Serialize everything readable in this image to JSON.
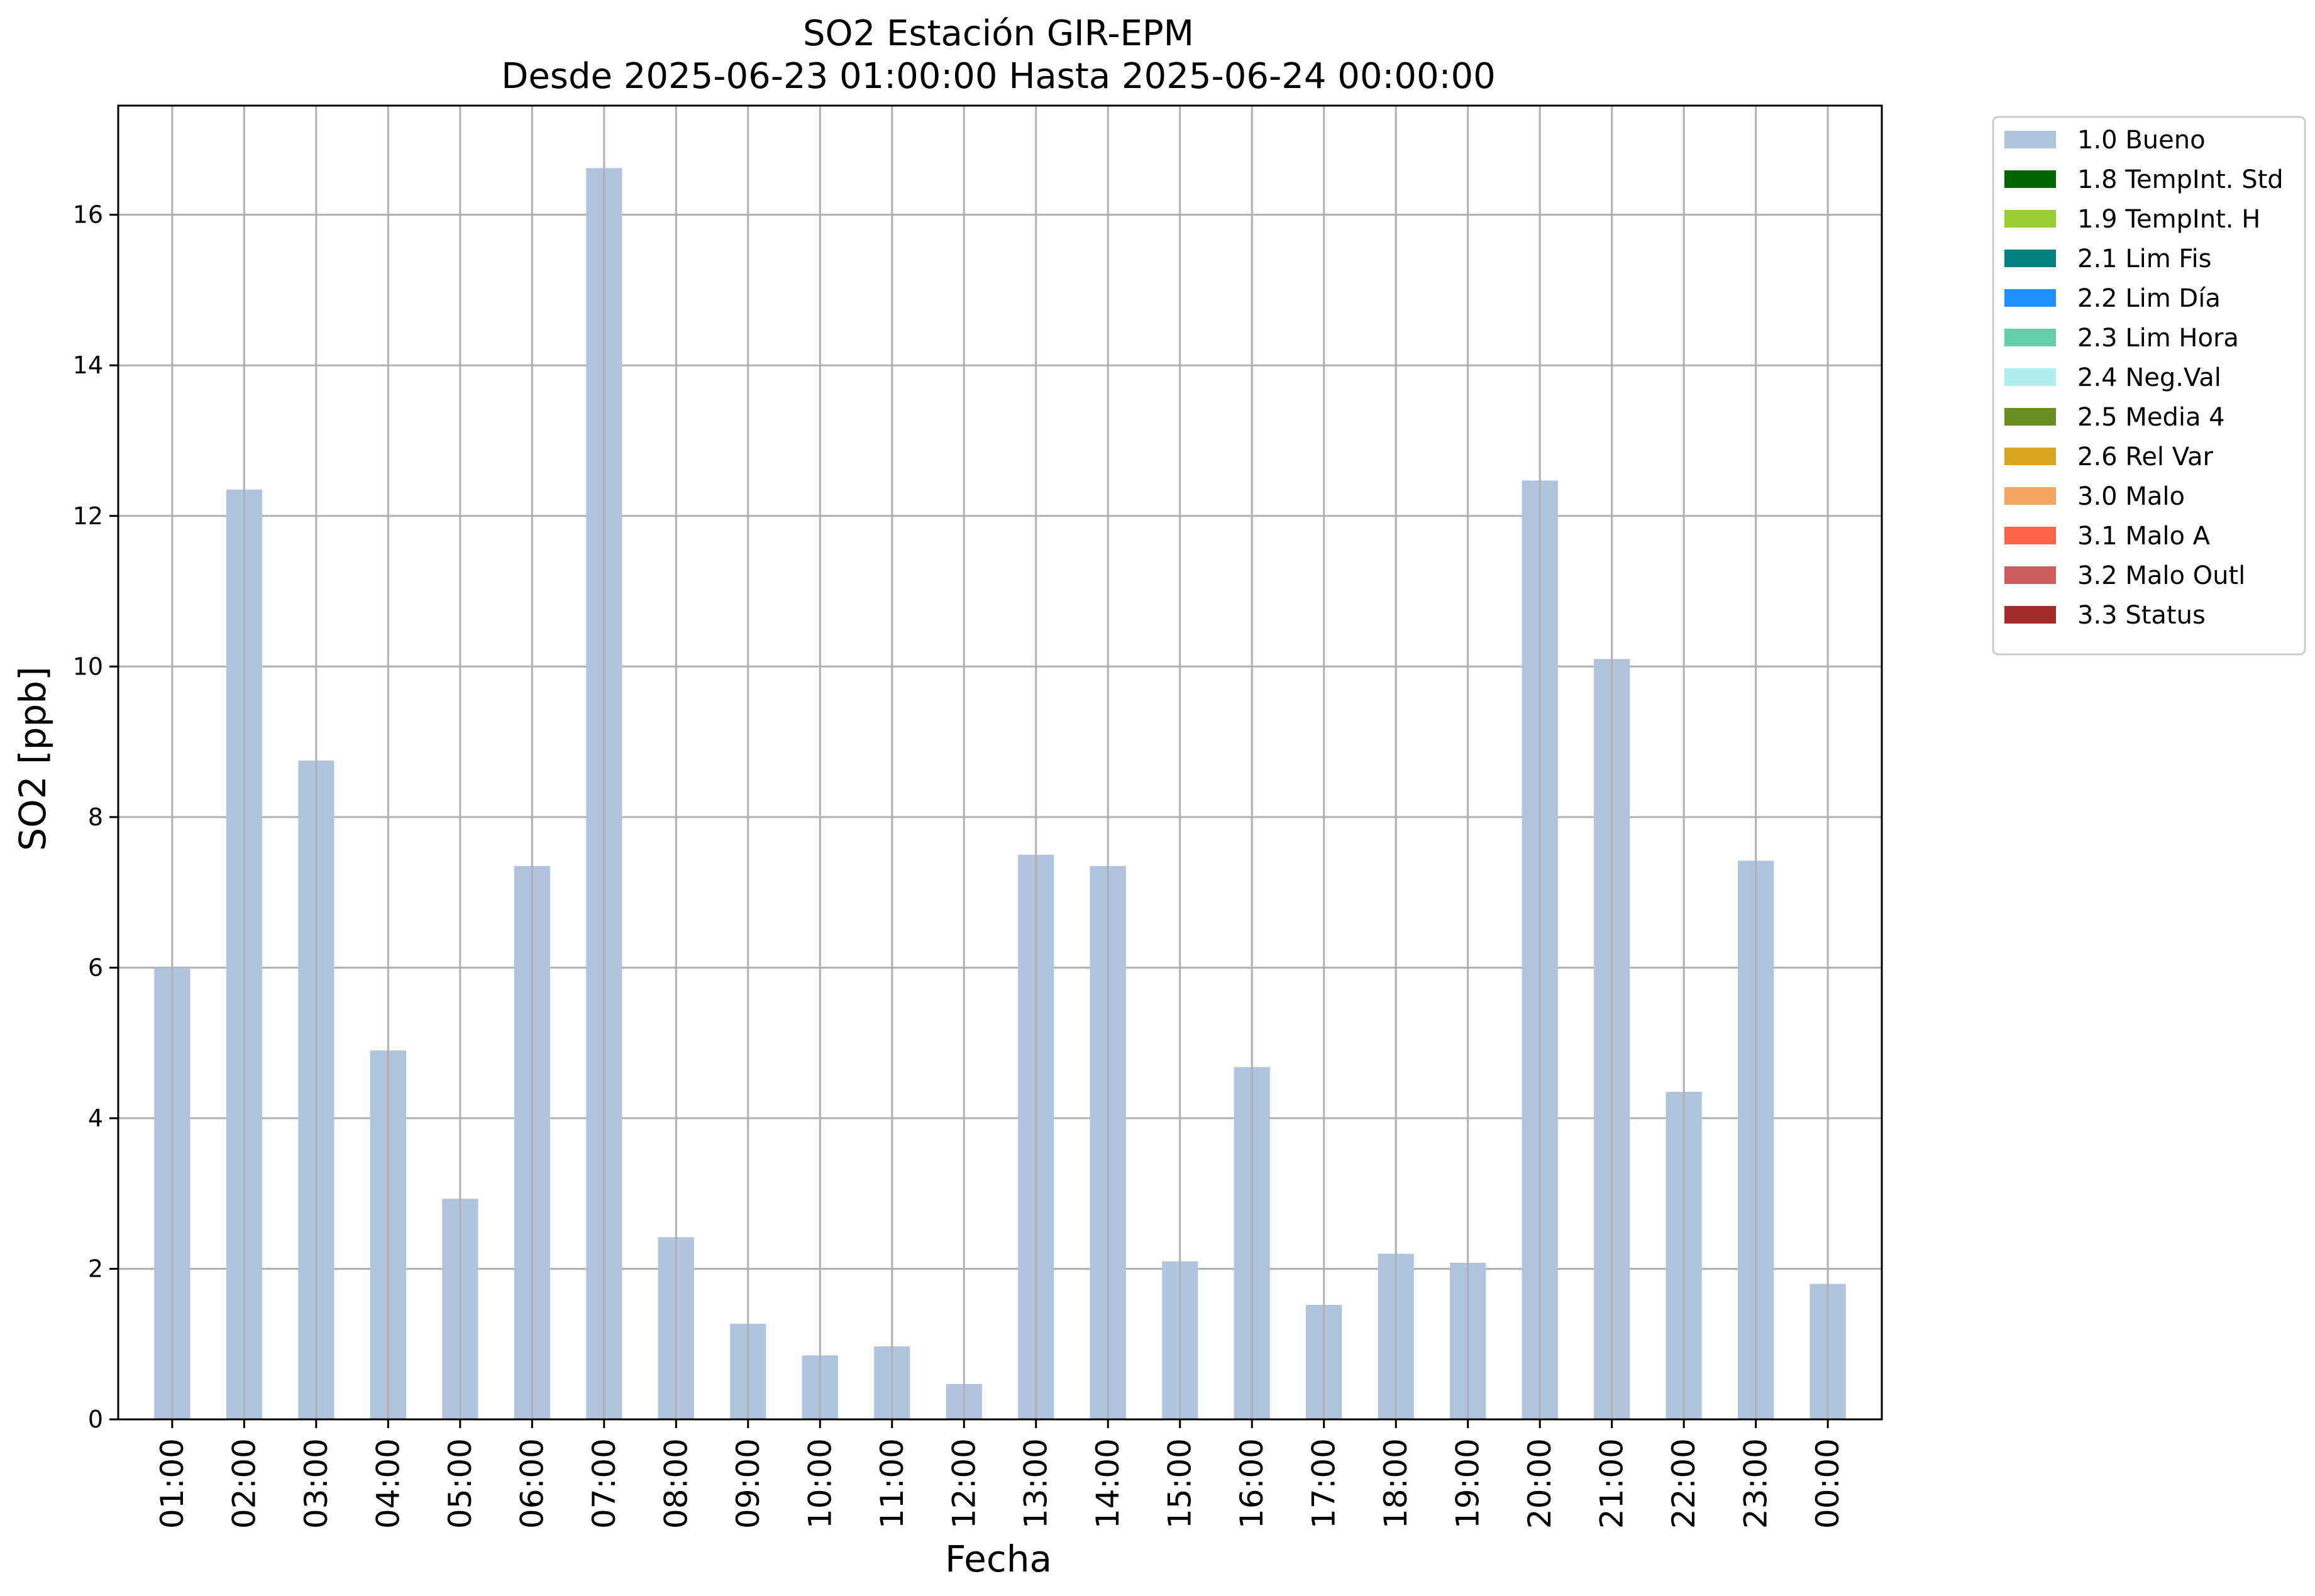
{
  "chart_data": {
    "type": "bar",
    "title": "SO2 Estación GIR-EPM",
    "subtitle": "Desde 2025-06-23 01:00:00 Hasta 2025-06-24 00:00:00",
    "xlabel": "Fecha",
    "ylabel": "SO2 [ppb]",
    "ylim": [
      0,
      17.45
    ],
    "yticks": [
      0,
      2,
      4,
      6,
      8,
      10,
      12,
      14,
      16
    ],
    "grid": true,
    "legend_position": "outside-top-right",
    "categories": [
      "01:00",
      "02:00",
      "03:00",
      "04:00",
      "05:00",
      "06:00",
      "07:00",
      "08:00",
      "09:00",
      "10:00",
      "11:00",
      "12:00",
      "13:00",
      "14:00",
      "15:00",
      "16:00",
      "17:00",
      "18:00",
      "19:00",
      "20:00",
      "21:00",
      "22:00",
      "23:00",
      "00:00"
    ],
    "series": [
      {
        "name": "1.0 Bueno",
        "color": "#b0c4de",
        "values": [
          6.0,
          12.35,
          8.75,
          4.9,
          2.93,
          7.35,
          16.62,
          2.42,
          1.27,
          0.85,
          0.97,
          0.47,
          7.5,
          7.35,
          2.1,
          4.68,
          1.52,
          2.2,
          2.08,
          12.47,
          10.1,
          4.35,
          7.42,
          1.8
        ]
      }
    ],
    "legend": [
      {
        "label": "1.0 Bueno",
        "color": "#b0c4de"
      },
      {
        "label": "1.8 TempInt. Std",
        "color": "#006400"
      },
      {
        "label": "1.9 TempInt. H",
        "color": "#9acd32"
      },
      {
        "label": "2.1 Lim Fis",
        "color": "#008080"
      },
      {
        "label": "2.2 Lim Día",
        "color": "#1e90ff"
      },
      {
        "label": "2.3 Lim Hora",
        "color": "#66cdaa"
      },
      {
        "label": "2.4 Neg.Val",
        "color": "#afeeee"
      },
      {
        "label": "2.5 Media 4",
        "color": "#6b8e23"
      },
      {
        "label": "2.6 Rel Var",
        "color": "#daa520"
      },
      {
        "label": "3.0 Malo",
        "color": "#f4a460"
      },
      {
        "label": "3.1 Malo A",
        "color": "#ff6347"
      },
      {
        "label": "3.2 Malo Outl",
        "color": "#cd5c5c"
      },
      {
        "label": "3.3 Status",
        "color": "#a52a2a"
      }
    ],
    "colors": {
      "grid": "#b0b0b0",
      "axes": "#000000"
    }
  }
}
